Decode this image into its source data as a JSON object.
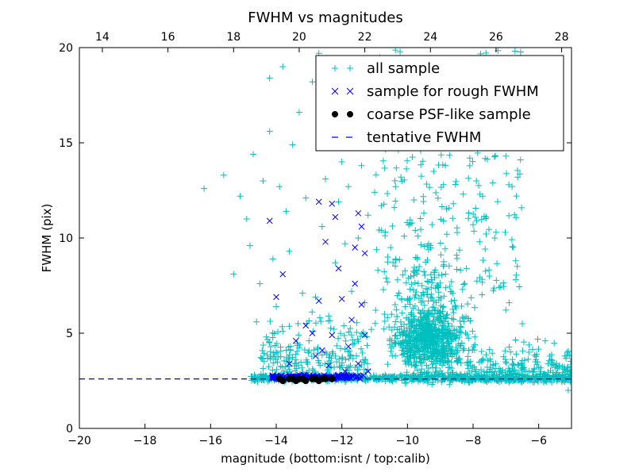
{
  "chart_data": {
    "type": "scatter",
    "title": "FWHM vs magnitudes",
    "xlabel": "magnitude (bottom:isnt / top:calib)",
    "ylabel": "FWHM (pix)",
    "xlim": [
      -20,
      -5
    ],
    "ylim": [
      0,
      20
    ],
    "top_xlim": [
      13.3,
      28.3
    ],
    "x_ticks": [
      "−20",
      "−18",
      "−16",
      "−14",
      "−12",
      "−10",
      "−8",
      "−6"
    ],
    "x_tick_values": [
      -20,
      -18,
      -16,
      -14,
      -12,
      -10,
      -8,
      -6
    ],
    "top_x_ticks": [
      "14",
      "16",
      "18",
      "20",
      "22",
      "24",
      "26",
      "28"
    ],
    "top_x_tick_values": [
      14,
      16,
      18,
      20,
      22,
      24,
      26,
      28
    ],
    "y_ticks": [
      "0",
      "5",
      "10",
      "15",
      "20"
    ],
    "y_tick_values": [
      0,
      5,
      10,
      15,
      20
    ],
    "legend_position": "top-right",
    "grid": false,
    "series": [
      {
        "name": "all sample",
        "marker": "plus",
        "color": "#00BFBF",
        "points": [
          [
            -16.2,
            12.6
          ],
          [
            -15.6,
            13.3
          ],
          [
            -15.3,
            8.1
          ],
          [
            -15.1,
            12.2
          ],
          [
            -14.9,
            11.0
          ],
          [
            -14.8,
            9.6
          ],
          [
            -14.7,
            14.4
          ],
          [
            -14.6,
            5.6
          ],
          [
            -14.5,
            7.6
          ],
          [
            -14.4,
            13.0
          ],
          [
            -14.3,
            4.8
          ],
          [
            -14.2,
            15.6
          ],
          [
            -14.2,
            18.4
          ],
          [
            -14.1,
            8.9
          ],
          [
            -14.0,
            6.4
          ],
          [
            -13.9,
            12.7
          ],
          [
            -13.8,
            5.1
          ],
          [
            -13.8,
            19.0
          ],
          [
            -13.7,
            11.4
          ],
          [
            -13.6,
            9.3
          ],
          [
            -13.5,
            14.9
          ],
          [
            -13.4,
            3.6
          ],
          [
            -13.3,
            16.6
          ],
          [
            -13.2,
            7.1
          ],
          [
            -13.1,
            12.1
          ],
          [
            -13.0,
            4.6
          ],
          [
            -12.9,
            18.2
          ],
          [
            -12.8,
            6.9
          ],
          [
            -12.7,
            19.7
          ],
          [
            -12.6,
            10.6
          ],
          [
            -12.5,
            13.1
          ],
          [
            -12.4,
            5.9
          ],
          [
            -12.3,
            15.1
          ],
          [
            -12.2,
            8.7
          ],
          [
            -12.1,
            11.9
          ],
          [
            -12.0,
            14.0
          ],
          [
            -11.9,
            9.7
          ],
          [
            -11.8,
            12.7
          ],
          [
            -11.7,
            7.2
          ],
          [
            -11.6,
            17.4
          ],
          [
            -11.5,
            10.0
          ],
          [
            -11.4,
            13.8
          ],
          [
            -11.3,
            6.6
          ],
          [
            -11.2,
            11.2
          ],
          [
            -11.1,
            5.2
          ],
          [
            -11.0,
            12.4
          ],
          [
            -10.9,
            8.3
          ],
          [
            -10.8,
            10.4
          ],
          [
            -10.7,
            6.0
          ],
          [
            -10.6,
            9.0
          ],
          [
            -10.5,
            16.2
          ],
          [
            -10.4,
            11.6
          ],
          [
            -10.3,
            7.8
          ],
          [
            -10.2,
            13.2
          ],
          [
            -10.1,
            10.1
          ],
          [
            -10.0,
            6.8
          ],
          [
            -9.9,
            18.5
          ],
          [
            -9.8,
            12.0
          ],
          [
            -9.7,
            8.9
          ],
          [
            -9.6,
            14.7
          ],
          [
            -9.5,
            11.3
          ],
          [
            -9.4,
            16.4
          ],
          [
            -9.3,
            9.6
          ],
          [
            -9.2,
            13.5
          ],
          [
            -9.1,
            7.5
          ],
          [
            -9.0,
            19.3
          ],
          [
            -8.9,
            12.8
          ],
          [
            -8.8,
            10.2
          ],
          [
            -8.7,
            15.0
          ],
          [
            -8.6,
            11.8
          ],
          [
            -8.5,
            9.1
          ],
          [
            -8.4,
            17.0
          ],
          [
            -8.3,
            12.3
          ],
          [
            -8.2,
            8.4
          ],
          [
            -8.1,
            14.2
          ],
          [
            -8.0,
            10.7
          ],
          [
            -7.9,
            13.0
          ],
          [
            -7.8,
            9.8
          ],
          [
            -7.7,
            15.8
          ],
          [
            -7.6,
            11.1
          ],
          [
            -7.5,
            8.0
          ],
          [
            -7.4,
            12.9
          ],
          [
            -7.3,
            10.3
          ],
          [
            -7.2,
            7.4
          ],
          [
            -7.0,
            14.3
          ],
          [
            -6.9,
            6.6
          ],
          [
            -6.7,
            8.8
          ],
          [
            -6.5,
            5.5
          ],
          [
            -6.3,
            4.0
          ],
          [
            -6.1,
            3.5
          ],
          [
            -5.8,
            4.6
          ],
          [
            -5.5,
            3.2
          ],
          [
            -5.2,
            3.8
          ],
          [
            -5.1,
            2.0
          ]
        ]
      },
      {
        "name": "sample for rough FWHM",
        "marker": "x",
        "color": "#0000FF",
        "points": [
          [
            -14.2,
            10.9
          ],
          [
            -14.0,
            6.9
          ],
          [
            -13.8,
            8.1
          ],
          [
            -13.6,
            3.4
          ],
          [
            -13.4,
            4.6
          ],
          [
            -13.1,
            5.4
          ],
          [
            -12.9,
            5.0
          ],
          [
            -12.8,
            3.8
          ],
          [
            -12.7,
            11.9
          ],
          [
            -12.7,
            6.7
          ],
          [
            -12.6,
            4.1
          ],
          [
            -12.5,
            9.8
          ],
          [
            -12.4,
            3.3
          ],
          [
            -12.3,
            4.9
          ],
          [
            -12.3,
            11.8
          ],
          [
            -12.2,
            11.1
          ],
          [
            -12.1,
            8.4
          ],
          [
            -12.0,
            6.8
          ],
          [
            -11.9,
            3.0
          ],
          [
            -11.8,
            4.3
          ],
          [
            -11.7,
            5.7
          ],
          [
            -11.6,
            9.5
          ],
          [
            -11.6,
            7.6
          ],
          [
            -11.5,
            11.3
          ],
          [
            -11.5,
            3.4
          ],
          [
            -11.4,
            10.6
          ],
          [
            -11.4,
            6.5
          ],
          [
            -11.3,
            9.2
          ],
          [
            -11.3,
            4.9
          ],
          [
            -11.2,
            3.0
          ]
        ]
      },
      {
        "name": "coarse PSF-like sample",
        "marker": "dot",
        "color": "#000000",
        "points": [
          [
            -13.9,
            2.6
          ],
          [
            -13.8,
            2.5
          ],
          [
            -13.6,
            2.6
          ],
          [
            -13.5,
            2.6
          ],
          [
            -13.4,
            2.5
          ],
          [
            -13.3,
            2.6
          ],
          [
            -13.2,
            2.6
          ],
          [
            -13.1,
            2.5
          ],
          [
            -12.9,
            2.6
          ],
          [
            -12.8,
            2.6
          ],
          [
            -12.7,
            2.5
          ],
          [
            -12.6,
            2.6
          ],
          [
            -12.5,
            2.6
          ],
          [
            -12.3,
            2.6
          ]
        ]
      },
      {
        "name": "tentative FWHM",
        "marker": "dashed-line",
        "color": "#0000FF",
        "y": 2.6
      }
    ]
  }
}
